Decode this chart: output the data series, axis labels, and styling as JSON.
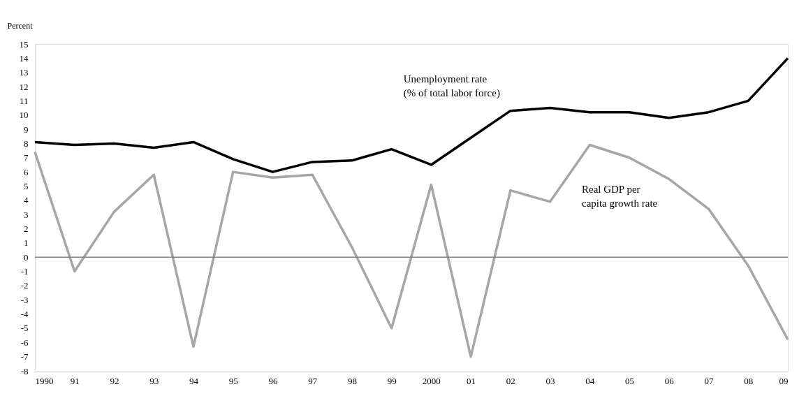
{
  "chart_data": {
    "type": "line",
    "ylabel": "Percent",
    "categories": [
      "1990",
      "91",
      "92",
      "93",
      "94",
      "95",
      "96",
      "97",
      "98",
      "99",
      "2000",
      "01",
      "02",
      "03",
      "04",
      "05",
      "06",
      "07",
      "08",
      "09"
    ],
    "series": [
      {
        "name": "Unemployment rate\n(% of total labor force)",
        "color": "#000000",
        "values": [
          8.1,
          7.9,
          8.0,
          7.7,
          8.1,
          6.9,
          6.0,
          6.7,
          6.8,
          7.6,
          6.5,
          8.4,
          10.3,
          10.5,
          10.2,
          10.2,
          9.8,
          10.2,
          11.0,
          14.0
        ]
      },
      {
        "name": "Real GDP per\ncapita growth rate",
        "color": "#a6a6a6",
        "values": [
          7.4,
          -1.0,
          3.2,
          5.8,
          -6.3,
          6.0,
          5.6,
          5.8,
          0.7,
          -5.0,
          5.1,
          -7.0,
          4.7,
          3.9,
          7.9,
          7.0,
          5.5,
          3.4,
          -0.6,
          -5.8
        ]
      }
    ],
    "ylim": [
      -8,
      15
    ],
    "yticks": [
      -8,
      -7,
      -6,
      -5,
      -4,
      -3,
      -2,
      -1,
      0,
      1,
      2,
      3,
      4,
      5,
      6,
      7,
      8,
      9,
      10,
      11,
      12,
      13,
      14,
      15
    ],
    "ref_lines": [
      {
        "axis": "y",
        "value": 0,
        "color": "#808080"
      }
    ],
    "grid": false,
    "marker": "none",
    "line_style": "solid"
  }
}
